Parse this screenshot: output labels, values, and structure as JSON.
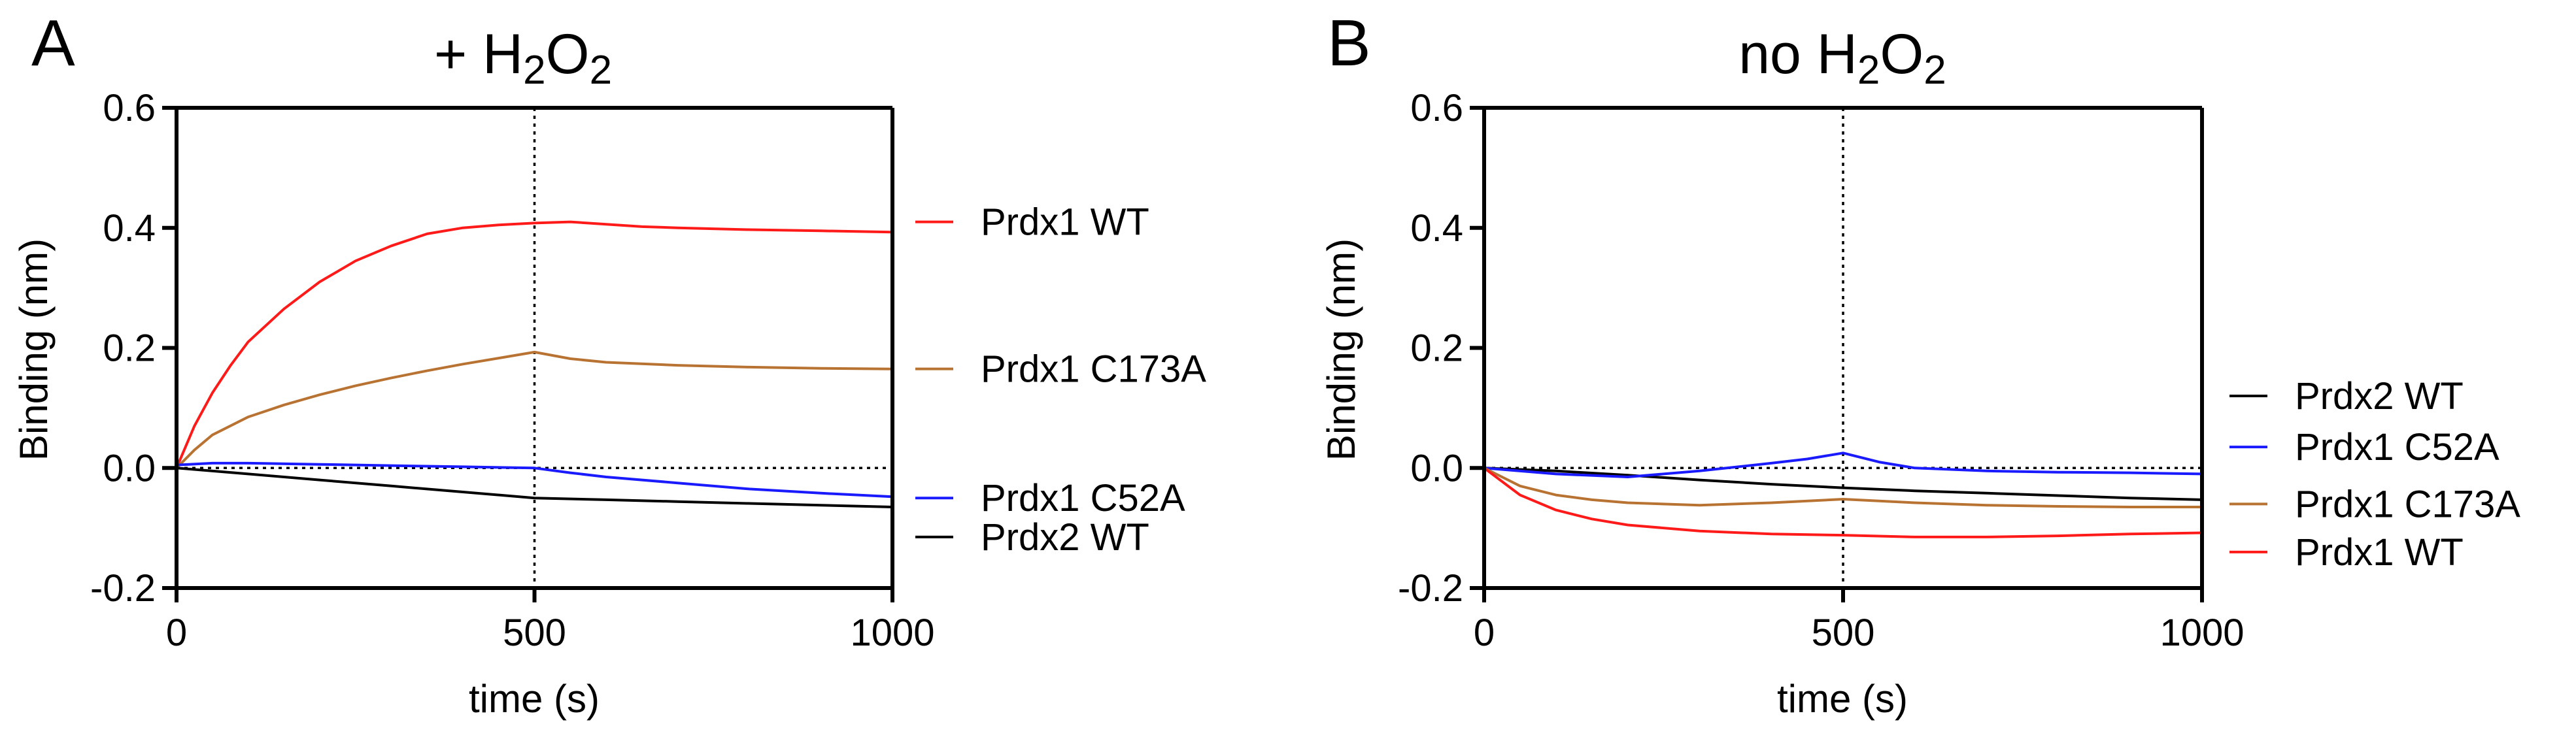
{
  "chart_data": [
    {
      "type": "line",
      "panel_letter": "A",
      "title_prefix": "+ H",
      "title_mid": "O",
      "title_sub": "2",
      "xlabel": "time (s)",
      "ylabel": "Binding (nm)",
      "xlim": [
        0,
        1000
      ],
      "ylim": [
        -0.2,
        0.6
      ],
      "xticks": [
        0,
        500,
        1000
      ],
      "xtick_labels": [
        "0",
        "500",
        "1000"
      ],
      "yticks": [
        -0.2,
        0.0,
        0.2,
        0.4,
        0.6
      ],
      "ytick_labels": [
        "-0.2",
        "0.0",
        "0.2",
        "0.4",
        "0.6"
      ],
      "vline_x": 500,
      "hline_y": 0,
      "legend_position": "right",
      "series": [
        {
          "name": "Prdx1 WT",
          "color": "#ff1a1a",
          "legend_value": 0.41,
          "x": [
            0,
            25,
            50,
            75,
            100,
            150,
            200,
            250,
            300,
            350,
            400,
            450,
            500,
            550,
            600,
            650,
            700,
            800,
            900,
            1000
          ],
          "y": [
            0.0,
            0.07,
            0.125,
            0.17,
            0.21,
            0.265,
            0.31,
            0.345,
            0.37,
            0.39,
            0.4,
            0.405,
            0.408,
            0.41,
            0.406,
            0.402,
            0.4,
            0.397,
            0.395,
            0.393
          ]
        },
        {
          "name": "Prdx1 C173A",
          "color": "#b87333",
          "legend_value": 0.165,
          "x": [
            0,
            25,
            50,
            100,
            150,
            200,
            250,
            300,
            350,
            400,
            450,
            500,
            550,
            600,
            700,
            800,
            900,
            1000
          ],
          "y": [
            0.0,
            0.03,
            0.055,
            0.085,
            0.105,
            0.122,
            0.137,
            0.15,
            0.162,
            0.173,
            0.183,
            0.193,
            0.182,
            0.176,
            0.171,
            0.168,
            0.166,
            0.165
          ]
        },
        {
          "name": "Prdx1 C52A",
          "color": "#1a1aff",
          "legend_value": -0.05,
          "x": [
            0,
            50,
            100,
            200,
            300,
            400,
            500,
            550,
            600,
            700,
            800,
            900,
            1000
          ],
          "y": [
            0.005,
            0.008,
            0.008,
            0.006,
            0.004,
            0.002,
            0.0,
            -0.008,
            -0.015,
            -0.025,
            -0.035,
            -0.042,
            -0.048
          ]
        },
        {
          "name": "Prdx2 WT",
          "color": "#000000",
          "legend_value": -0.115,
          "x": [
            0,
            100,
            200,
            300,
            400,
            500,
            600,
            700,
            800,
            900,
            1000
          ],
          "y": [
            0.0,
            -0.01,
            -0.02,
            -0.03,
            -0.04,
            -0.05,
            -0.053,
            -0.056,
            -0.059,
            -0.062,
            -0.065
          ]
        }
      ]
    },
    {
      "type": "line",
      "panel_letter": "B",
      "title_prefix": "no H",
      "title_mid": "O",
      "title_sub": "2",
      "xlabel": "time (s)",
      "ylabel": "Binding (nm)",
      "xlim": [
        0,
        1000
      ],
      "ylim": [
        -0.2,
        0.6
      ],
      "xticks": [
        0,
        500,
        1000
      ],
      "xtick_labels": [
        "0",
        "500",
        "1000"
      ],
      "yticks": [
        -0.2,
        0.0,
        0.2,
        0.4,
        0.6
      ],
      "ytick_labels": [
        "-0.2",
        "0.0",
        "0.2",
        "0.4",
        "0.6"
      ],
      "vline_x": 500,
      "hline_y": 0,
      "legend_position": "right",
      "series": [
        {
          "name": "Prdx2 WT",
          "color": "#000000",
          "legend_value": 0.12,
          "x": [
            0,
            100,
            200,
            300,
            400,
            500,
            600,
            700,
            800,
            900,
            1000
          ],
          "y": [
            0.0,
            -0.005,
            -0.012,
            -0.02,
            -0.027,
            -0.033,
            -0.038,
            -0.042,
            -0.046,
            -0.05,
            -0.053
          ]
        },
        {
          "name": "Prdx1 C52A",
          "color": "#1a1aff",
          "legend_value": 0.035,
          "x": [
            0,
            100,
            200,
            300,
            400,
            450,
            500,
            550,
            600,
            700,
            800,
            900,
            1000
          ],
          "y": [
            0.0,
            -0.01,
            -0.015,
            -0.005,
            0.008,
            0.015,
            0.025,
            0.01,
            0.0,
            -0.005,
            -0.007,
            -0.008,
            -0.01
          ]
        },
        {
          "name": "Prdx1 C173A",
          "color": "#b87333",
          "legend_value": -0.06,
          "x": [
            0,
            50,
            100,
            150,
            200,
            300,
            400,
            500,
            600,
            700,
            800,
            900,
            1000
          ],
          "y": [
            0.0,
            -0.03,
            -0.045,
            -0.053,
            -0.058,
            -0.062,
            -0.058,
            -0.052,
            -0.058,
            -0.062,
            -0.064,
            -0.065,
            -0.065
          ]
        },
        {
          "name": "Prdx1 WT",
          "color": "#ff1a1a",
          "legend_value": -0.14,
          "x": [
            0,
            50,
            100,
            150,
            200,
            300,
            400,
            500,
            600,
            700,
            800,
            900,
            1000
          ],
          "y": [
            0.0,
            -0.045,
            -0.07,
            -0.085,
            -0.095,
            -0.105,
            -0.11,
            -0.112,
            -0.115,
            -0.115,
            -0.113,
            -0.11,
            -0.108
          ]
        }
      ]
    }
  ]
}
